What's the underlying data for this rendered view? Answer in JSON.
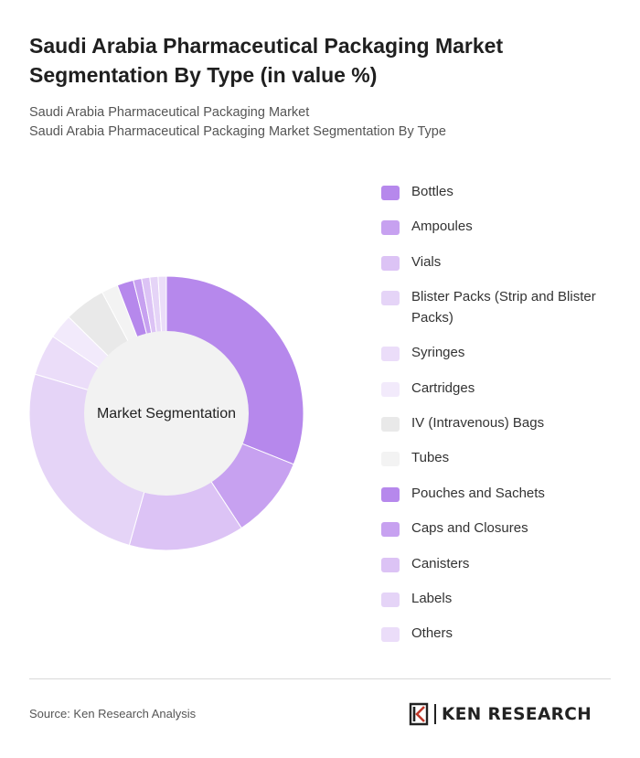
{
  "header": {
    "title": "Saudi Arabia Pharmaceutical Packaging Market Segmentation By Type (in value %)",
    "subtitle_line1": "Saudi Arabia Pharmaceutical Packaging Market",
    "subtitle_line2": "Saudi Arabia Pharmaceutical Packaging Market Segmentation By Type"
  },
  "chart_data": {
    "type": "pie",
    "donut": true,
    "center_label": "Market Segmentation",
    "legend_position": "right",
    "categories": [
      "Bottles",
      "Ampoules",
      "Vials",
      "Blister Packs (Strip and Blister Packs)",
      "Syringes",
      "Cartridges",
      "IV (Intravenous) Bags",
      "Tubes",
      "Pouches and Sachets",
      "Caps and Closures",
      "Canisters",
      "Labels",
      "Others"
    ],
    "values": [
      32,
      10,
      14,
      26,
      5,
      3,
      5,
      2,
      2,
      1,
      1,
      1,
      1
    ],
    "colors": [
      "#b688ec",
      "#c7a1f0",
      "#dcc3f5",
      "#e5d4f7",
      "#ebddf9",
      "#f2eafb",
      "#e9e9e9",
      "#f3f3f3",
      "#b688ec",
      "#c7a1f0",
      "#dcc3f5",
      "#e5d4f7",
      "#ebddf9"
    ],
    "center_color": "#f2f2f2"
  },
  "footer": {
    "source": "Source: Ken Research Analysis",
    "brand": "KEN RESEARCH"
  }
}
